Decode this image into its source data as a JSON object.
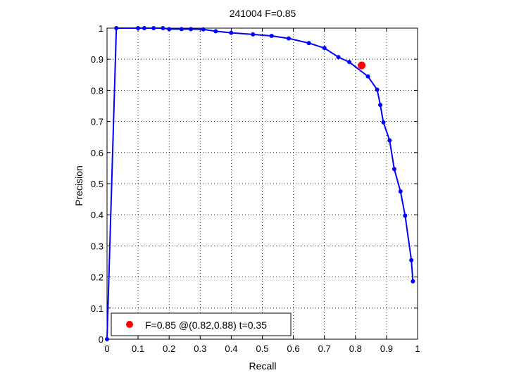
{
  "chart_data": {
    "type": "line",
    "title": "241004 F=0.85",
    "xlabel": "Recall",
    "ylabel": "Precision",
    "xlim": [
      0,
      1
    ],
    "ylim": [
      0,
      1
    ],
    "grid": true,
    "x_ticks": [
      "0",
      "0.1",
      "0.2",
      "0.3",
      "0.4",
      "0.5",
      "0.6",
      "0.7",
      "0.8",
      "0.9",
      "1"
    ],
    "y_ticks": [
      "0",
      "0.1",
      "0.2",
      "0.3",
      "0.4",
      "0.5",
      "0.6",
      "0.7",
      "0.8",
      "0.9",
      "1"
    ],
    "series": [
      {
        "color": "#0000ff",
        "points": [
          [
            0.0,
            0.0
          ],
          [
            0.03,
            1.0
          ],
          [
            0.1,
            1.0
          ],
          [
            0.12,
            1.0
          ],
          [
            0.15,
            1.0
          ],
          [
            0.18,
            1.0
          ],
          [
            0.2,
            0.997
          ],
          [
            0.24,
            0.997
          ],
          [
            0.27,
            0.997
          ],
          [
            0.31,
            0.996
          ],
          [
            0.35,
            0.99
          ],
          [
            0.4,
            0.985
          ],
          [
            0.47,
            0.98
          ],
          [
            0.53,
            0.975
          ],
          [
            0.585,
            0.967
          ],
          [
            0.65,
            0.952
          ],
          [
            0.7,
            0.936
          ],
          [
            0.745,
            0.907
          ],
          [
            0.78,
            0.891
          ],
          [
            0.84,
            0.845
          ],
          [
            0.87,
            0.802
          ],
          [
            0.88,
            0.753
          ],
          [
            0.89,
            0.697
          ],
          [
            0.91,
            0.639
          ],
          [
            0.925,
            0.547
          ],
          [
            0.945,
            0.475
          ],
          [
            0.96,
            0.397
          ],
          [
            0.98,
            0.254
          ],
          [
            0.985,
            0.186
          ]
        ]
      }
    ],
    "best_point": {
      "x": 0.82,
      "y": 0.88,
      "color": "#ff0000"
    },
    "legend": {
      "position": "bottom-left",
      "label": "F=0.85 @(0.82,0.88) t=0.35"
    }
  }
}
